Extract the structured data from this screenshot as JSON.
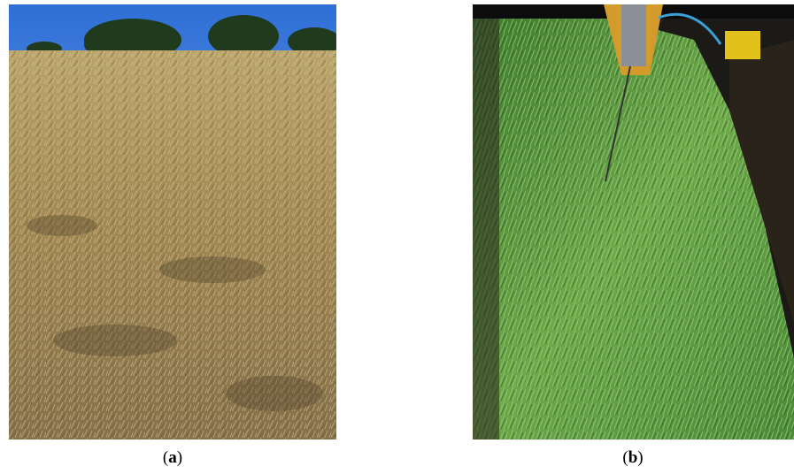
{
  "panels": [
    {
      "caption": {
        "open": "(",
        "letter": "a",
        "close": ")"
      }
    },
    {
      "caption": {
        "open": "(",
        "letter": "b",
        "close": ")"
      }
    }
  ]
}
